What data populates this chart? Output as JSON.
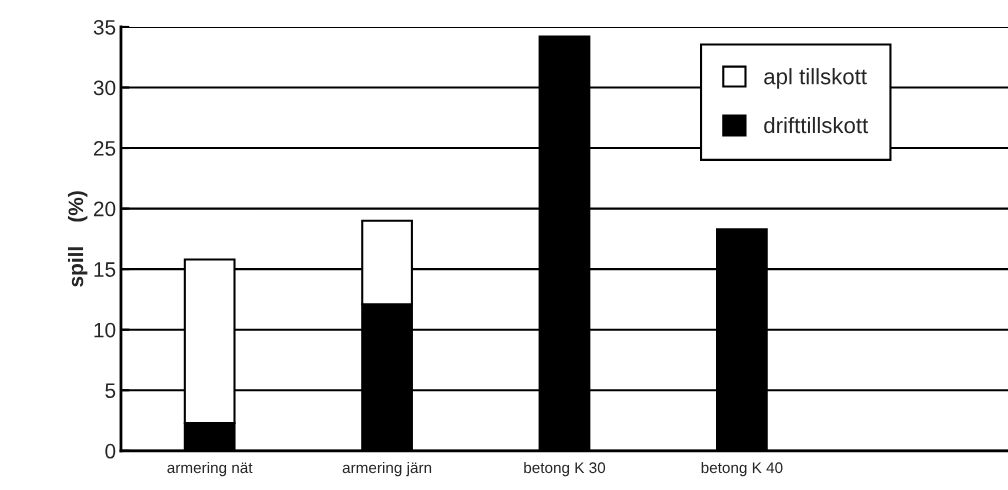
{
  "chart_data": {
    "type": "bar",
    "stacked": true,
    "ylabel": "spill    (%)",
    "categories": [
      "armering nät",
      "armering järn",
      "betong K 30",
      "betong K 40",
      null
    ],
    "series": [
      {
        "name": "drifttillskott",
        "color": "#000000",
        "values": [
          2.3,
          12.1,
          34.2,
          18.3,
          null
        ]
      },
      {
        "name": "apl tillskott",
        "color": "#ffffff",
        "values": [
          13.5,
          6.9,
          0,
          0,
          null
        ]
      }
    ],
    "ylim": [
      0,
      35
    ],
    "yticks": [
      0,
      5,
      10,
      15,
      20,
      25,
      30,
      35
    ],
    "grid": "y",
    "legend": "top right"
  }
}
